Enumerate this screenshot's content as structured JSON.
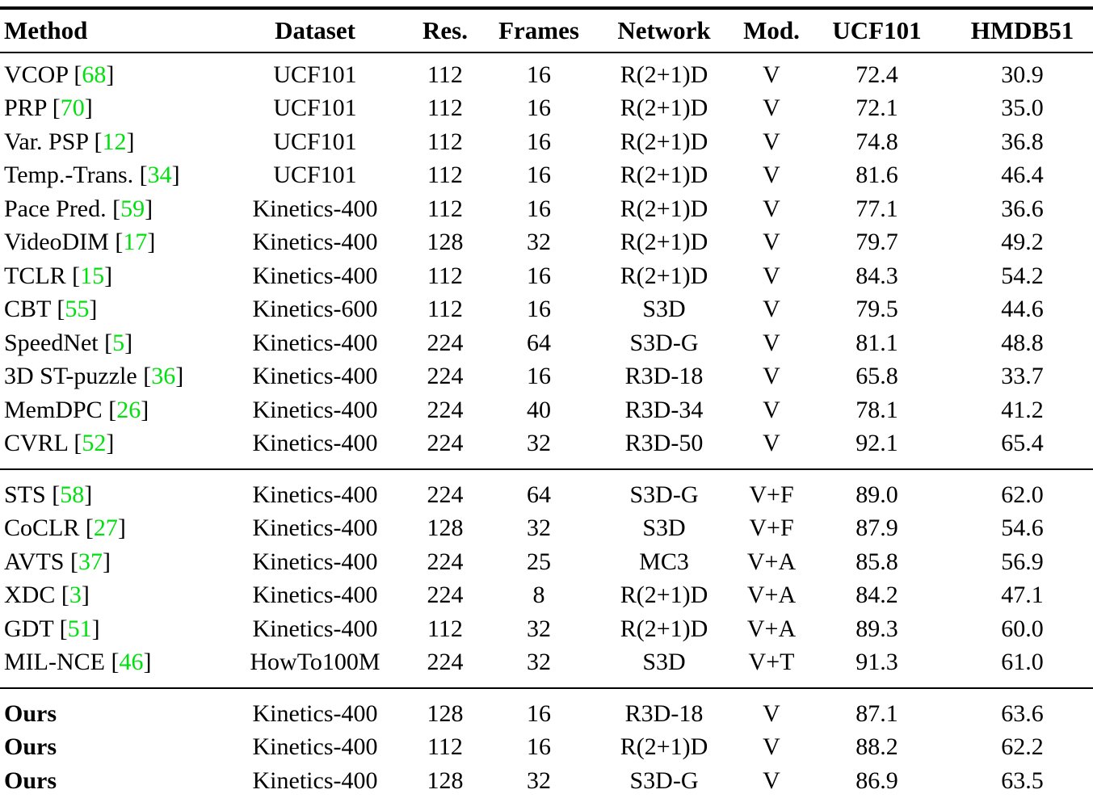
{
  "table": {
    "citation_color": "#00E00E",
    "text_color": "#000000",
    "columns": [
      "Method",
      "Dataset",
      "Res.",
      "Frames",
      "Network",
      "Mod.",
      "UCF101",
      "HMDB51"
    ],
    "sections": [
      {
        "rows": [
          {
            "method": "VCOP",
            "cite": "68",
            "dataset": "UCF101",
            "res": "112",
            "frames": "16",
            "network": "R(2+1)D",
            "mod": "V",
            "ucf101": "72.4",
            "hmdb51": "30.9"
          },
          {
            "method": "PRP",
            "cite": "70",
            "dataset": "UCF101",
            "res": "112",
            "frames": "16",
            "network": "R(2+1)D",
            "mod": "V",
            "ucf101": "72.1",
            "hmdb51": "35.0"
          },
          {
            "method": "Var. PSP",
            "cite": "12",
            "dataset": "UCF101",
            "res": "112",
            "frames": "16",
            "network": "R(2+1)D",
            "mod": "V",
            "ucf101": "74.8",
            "hmdb51": "36.8"
          },
          {
            "method": "Temp.-Trans.",
            "cite": "34",
            "dataset": "UCF101",
            "res": "112",
            "frames": "16",
            "network": "R(2+1)D",
            "mod": "V",
            "ucf101": "81.6",
            "hmdb51": "46.4"
          },
          {
            "method": "Pace Pred.",
            "cite": "59",
            "dataset": "Kinetics-400",
            "res": "112",
            "frames": "16",
            "network": "R(2+1)D",
            "mod": "V",
            "ucf101": "77.1",
            "hmdb51": "36.6"
          },
          {
            "method": "VideoDIM",
            "cite": "17",
            "dataset": "Kinetics-400",
            "res": "128",
            "frames": "32",
            "network": "R(2+1)D",
            "mod": "V",
            "ucf101": "79.7",
            "hmdb51": "49.2"
          },
          {
            "method": "TCLR",
            "cite": "15",
            "dataset": "Kinetics-400",
            "res": "112",
            "frames": "16",
            "network": "R(2+1)D",
            "mod": "V",
            "ucf101": "84.3",
            "hmdb51": "54.2"
          },
          {
            "method": "CBT",
            "cite": "55",
            "dataset": "Kinetics-600",
            "res": "112",
            "frames": "16",
            "network": "S3D",
            "mod": "V",
            "ucf101": "79.5",
            "hmdb51": "44.6"
          },
          {
            "method": "SpeedNet",
            "cite": "5",
            "dataset": "Kinetics-400",
            "res": "224",
            "frames": "64",
            "network": "S3D-G",
            "mod": "V",
            "ucf101": "81.1",
            "hmdb51": "48.8"
          },
          {
            "method": "3D ST-puzzle",
            "cite": "36",
            "dataset": "Kinetics-400",
            "res": "224",
            "frames": "16",
            "network": "R3D-18",
            "mod": "V",
            "ucf101": "65.8",
            "hmdb51": "33.7"
          },
          {
            "method": "MemDPC",
            "cite": "26",
            "dataset": "Kinetics-400",
            "res": "224",
            "frames": "40",
            "network": "R3D-34",
            "mod": "V",
            "ucf101": "78.1",
            "hmdb51": "41.2"
          },
          {
            "method": "CVRL",
            "cite": "52",
            "dataset": "Kinetics-400",
            "res": "224",
            "frames": "32",
            "network": "R3D-50",
            "mod": "V",
            "ucf101": "92.1",
            "hmdb51": "65.4"
          }
        ]
      },
      {
        "rows": [
          {
            "method": "STS",
            "cite": "58",
            "dataset": "Kinetics-400",
            "res": "224",
            "frames": "64",
            "network": "S3D-G",
            "mod": "V+F",
            "ucf101": "89.0",
            "hmdb51": "62.0"
          },
          {
            "method": "CoCLR",
            "cite": "27",
            "dataset": "Kinetics-400",
            "res": "128",
            "frames": "32",
            "network": "S3D",
            "mod": "V+F",
            "ucf101": "87.9",
            "hmdb51": "54.6"
          },
          {
            "method": "AVTS",
            "cite": "37",
            "dataset": "Kinetics-400",
            "res": "224",
            "frames": "25",
            "network": "MC3",
            "mod": "V+A",
            "ucf101": "85.8",
            "hmdb51": "56.9"
          },
          {
            "method": "XDC",
            "cite": "3",
            "dataset": "Kinetics-400",
            "res": "224",
            "frames": "8",
            "network": "R(2+1)D",
            "mod": "V+A",
            "ucf101": "84.2",
            "hmdb51": "47.1"
          },
          {
            "method": "GDT",
            "cite": "51",
            "dataset": "Kinetics-400",
            "res": "112",
            "frames": "32",
            "network": "R(2+1)D",
            "mod": "V+A",
            "ucf101": "89.3",
            "hmdb51": "60.0"
          },
          {
            "method": "MIL-NCE",
            "cite": "46",
            "dataset": "HowTo100M",
            "res": "224",
            "frames": "32",
            "network": "S3D",
            "mod": "V+T",
            "ucf101": "91.3",
            "hmdb51": "61.0"
          }
        ]
      },
      {
        "rows": [
          {
            "method": "Ours",
            "cite": "",
            "bold": true,
            "dataset": "Kinetics-400",
            "res": "128",
            "frames": "16",
            "network": "R3D-18",
            "mod": "V",
            "ucf101": "87.1",
            "hmdb51": "63.6"
          },
          {
            "method": "Ours",
            "cite": "",
            "bold": true,
            "dataset": "Kinetics-400",
            "res": "112",
            "frames": "16",
            "network": "R(2+1)D",
            "mod": "V",
            "ucf101": "88.2",
            "hmdb51": "62.2"
          },
          {
            "method": "Ours",
            "cite": "",
            "bold": true,
            "dataset": "Kinetics-400",
            "res": "128",
            "frames": "32",
            "network": "S3D-G",
            "mod": "V",
            "ucf101": "86.9",
            "hmdb51": "63.5"
          }
        ]
      }
    ]
  }
}
